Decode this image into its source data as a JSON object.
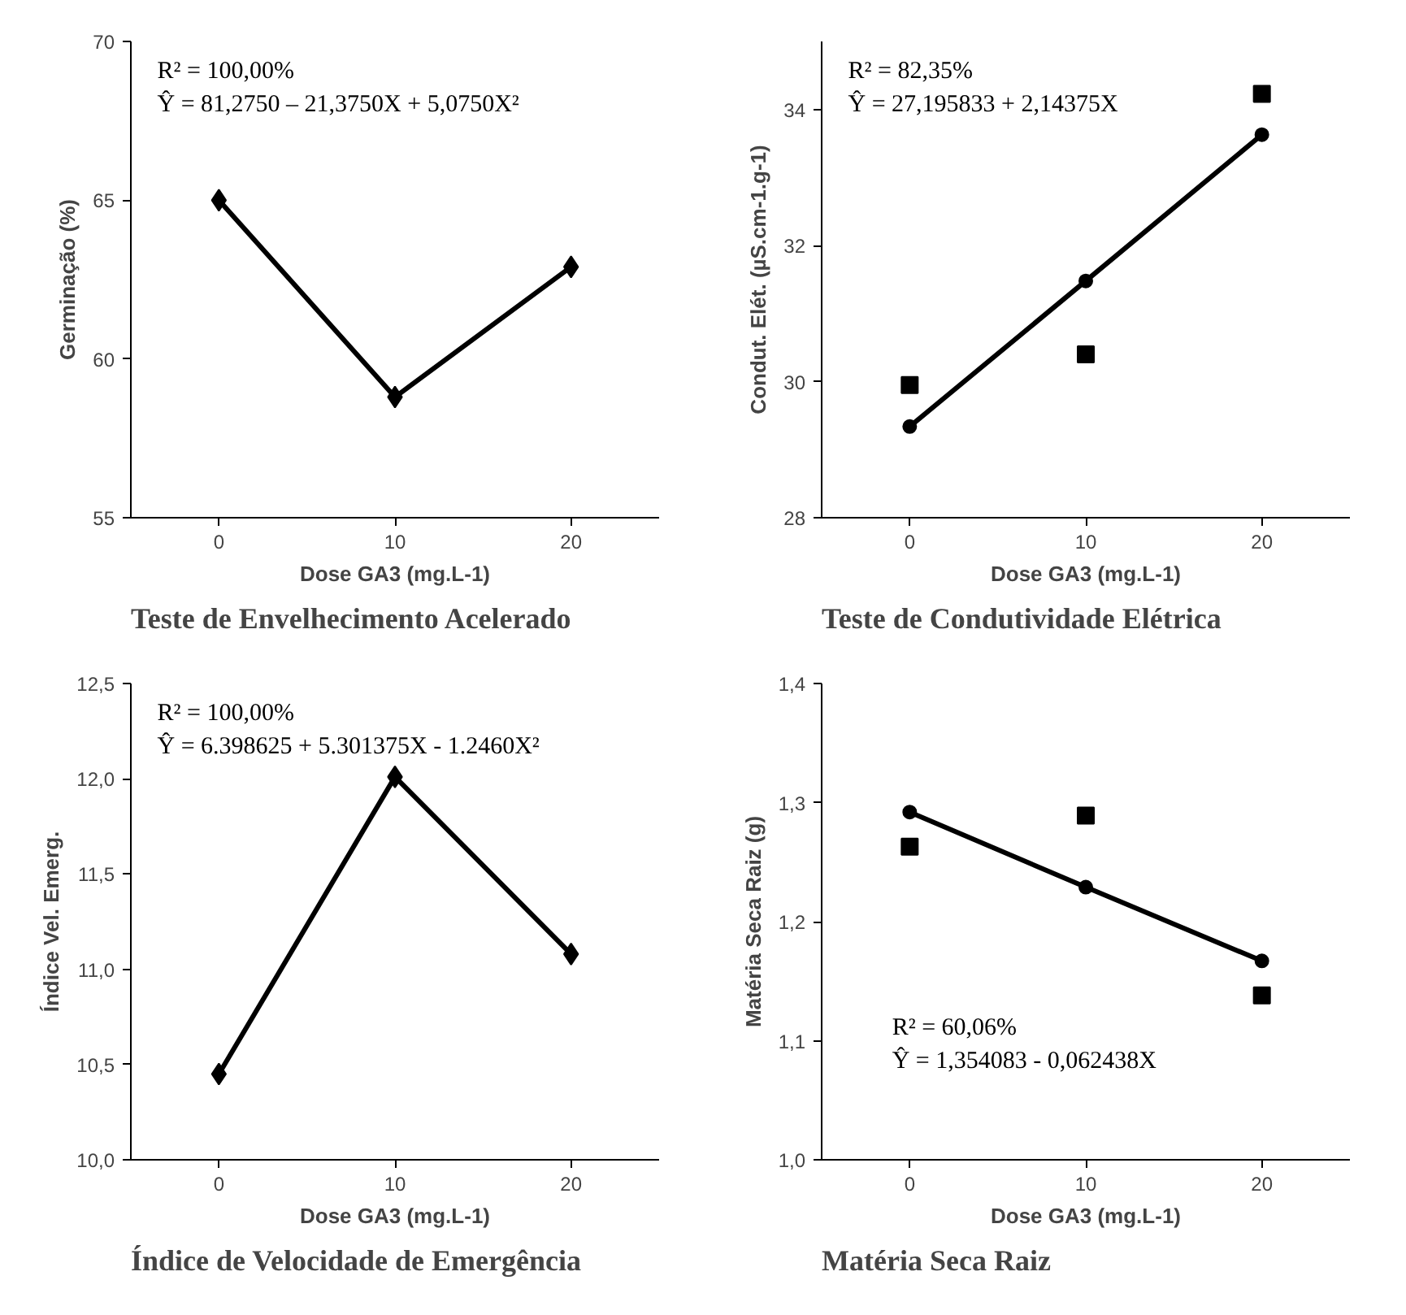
{
  "chart_data": [
    {
      "type": "line",
      "title": "Teste de Envelhecimento Acelerado",
      "xlabel": "Dose GA3 (mg.L-1)",
      "ylabel": "Germinação (%)",
      "categories": [
        "0",
        "10",
        "20"
      ],
      "ylim": [
        55,
        70
      ],
      "yticks": [
        55,
        60,
        65,
        70
      ],
      "marker": "diamond",
      "line_style": "solid",
      "grid": false,
      "series": [
        {
          "color": "#000000",
          "values": [
            65.0,
            58.8,
            62.9
          ]
        }
      ],
      "annotations": [
        "R² = 100,00%",
        "Ŷ = 81,2750 – 21,3750X + 5,0750X²"
      ]
    },
    {
      "type": "scatter",
      "title": "Teste de Condutividade Elétrica",
      "xlabel": "Dose GA3 (mg.L-1)",
      "ylabel": "Condut. Elét. (µS.cm-1.g-1)",
      "categories": [
        "0",
        "10",
        "20"
      ],
      "ylim": [
        28,
        35
      ],
      "yticks": [
        28,
        30,
        32,
        34
      ],
      "grid": false,
      "series": [
        {
          "type": "scatter",
          "marker": "square",
          "color": "#000000",
          "values": [
            29.95,
            30.4,
            34.23
          ]
        },
        {
          "type": "line",
          "marker": "circle",
          "line_style": "solid",
          "color": "#000000",
          "x": [
            "0",
            "10",
            "20"
          ],
          "values": [
            29.34,
            31.48,
            33.63
          ]
        }
      ],
      "annotations": [
        "R² = 82,35%",
        "Ŷ = 27,195833 + 2,14375X"
      ]
    },
    {
      "type": "line",
      "title": "Índice de Velocidade de Emergência",
      "xlabel": "Dose GA3 (mg.L-1)",
      "ylabel": "Índice Vel. Emerg.",
      "categories": [
        "0",
        "10",
        "20"
      ],
      "ylim": [
        10,
        12.5
      ],
      "yticks": [
        {
          "value": 10,
          "label": "10,0"
        },
        {
          "value": 10.5,
          "label": "10,5"
        },
        {
          "value": 11,
          "label": "11,0"
        },
        {
          "value": 11.5,
          "label": "11,5"
        },
        {
          "value": 12,
          "label": "12,0"
        },
        {
          "value": 12.5,
          "label": "12,5"
        }
      ],
      "marker": "diamond",
      "line_style": "solid",
      "grid": false,
      "series": [
        {
          "color": "#000000",
          "values": [
            10.45,
            12.01,
            11.08
          ]
        }
      ],
      "annotations": [
        "R² = 100,00%",
        "Ŷ = 6.398625 + 5.301375X - 1.2460X²"
      ]
    },
    {
      "type": "scatter",
      "title": "Matéria Seca Raiz",
      "xlabel": "Dose GA3 (mg.L-1)",
      "ylabel": "Matéria Seca Raiz (g)",
      "categories": [
        "0",
        "10",
        "20"
      ],
      "ylim": [
        1.0,
        1.4
      ],
      "yticks": [
        {
          "value": 1.0,
          "label": "1,0"
        },
        {
          "value": 1.1,
          "label": "1,1"
        },
        {
          "value": 1.2,
          "label": "1,2"
        },
        {
          "value": 1.3,
          "label": "1,3"
        },
        {
          "value": 1.4,
          "label": "1,4"
        }
      ],
      "grid": false,
      "series": [
        {
          "type": "scatter",
          "marker": "square",
          "color": "#000000",
          "values": [
            1.263,
            1.289,
            1.138
          ]
        },
        {
          "type": "line",
          "marker": "circle",
          "line_style": "solid",
          "color": "#000000",
          "x": [
            "0",
            "10",
            "20"
          ],
          "values": [
            1.292,
            1.229,
            1.167
          ]
        }
      ],
      "annotations": [
        "R² = 60,06%",
        "Ŷ = 1,354083 - 0,062438X"
      ]
    }
  ]
}
